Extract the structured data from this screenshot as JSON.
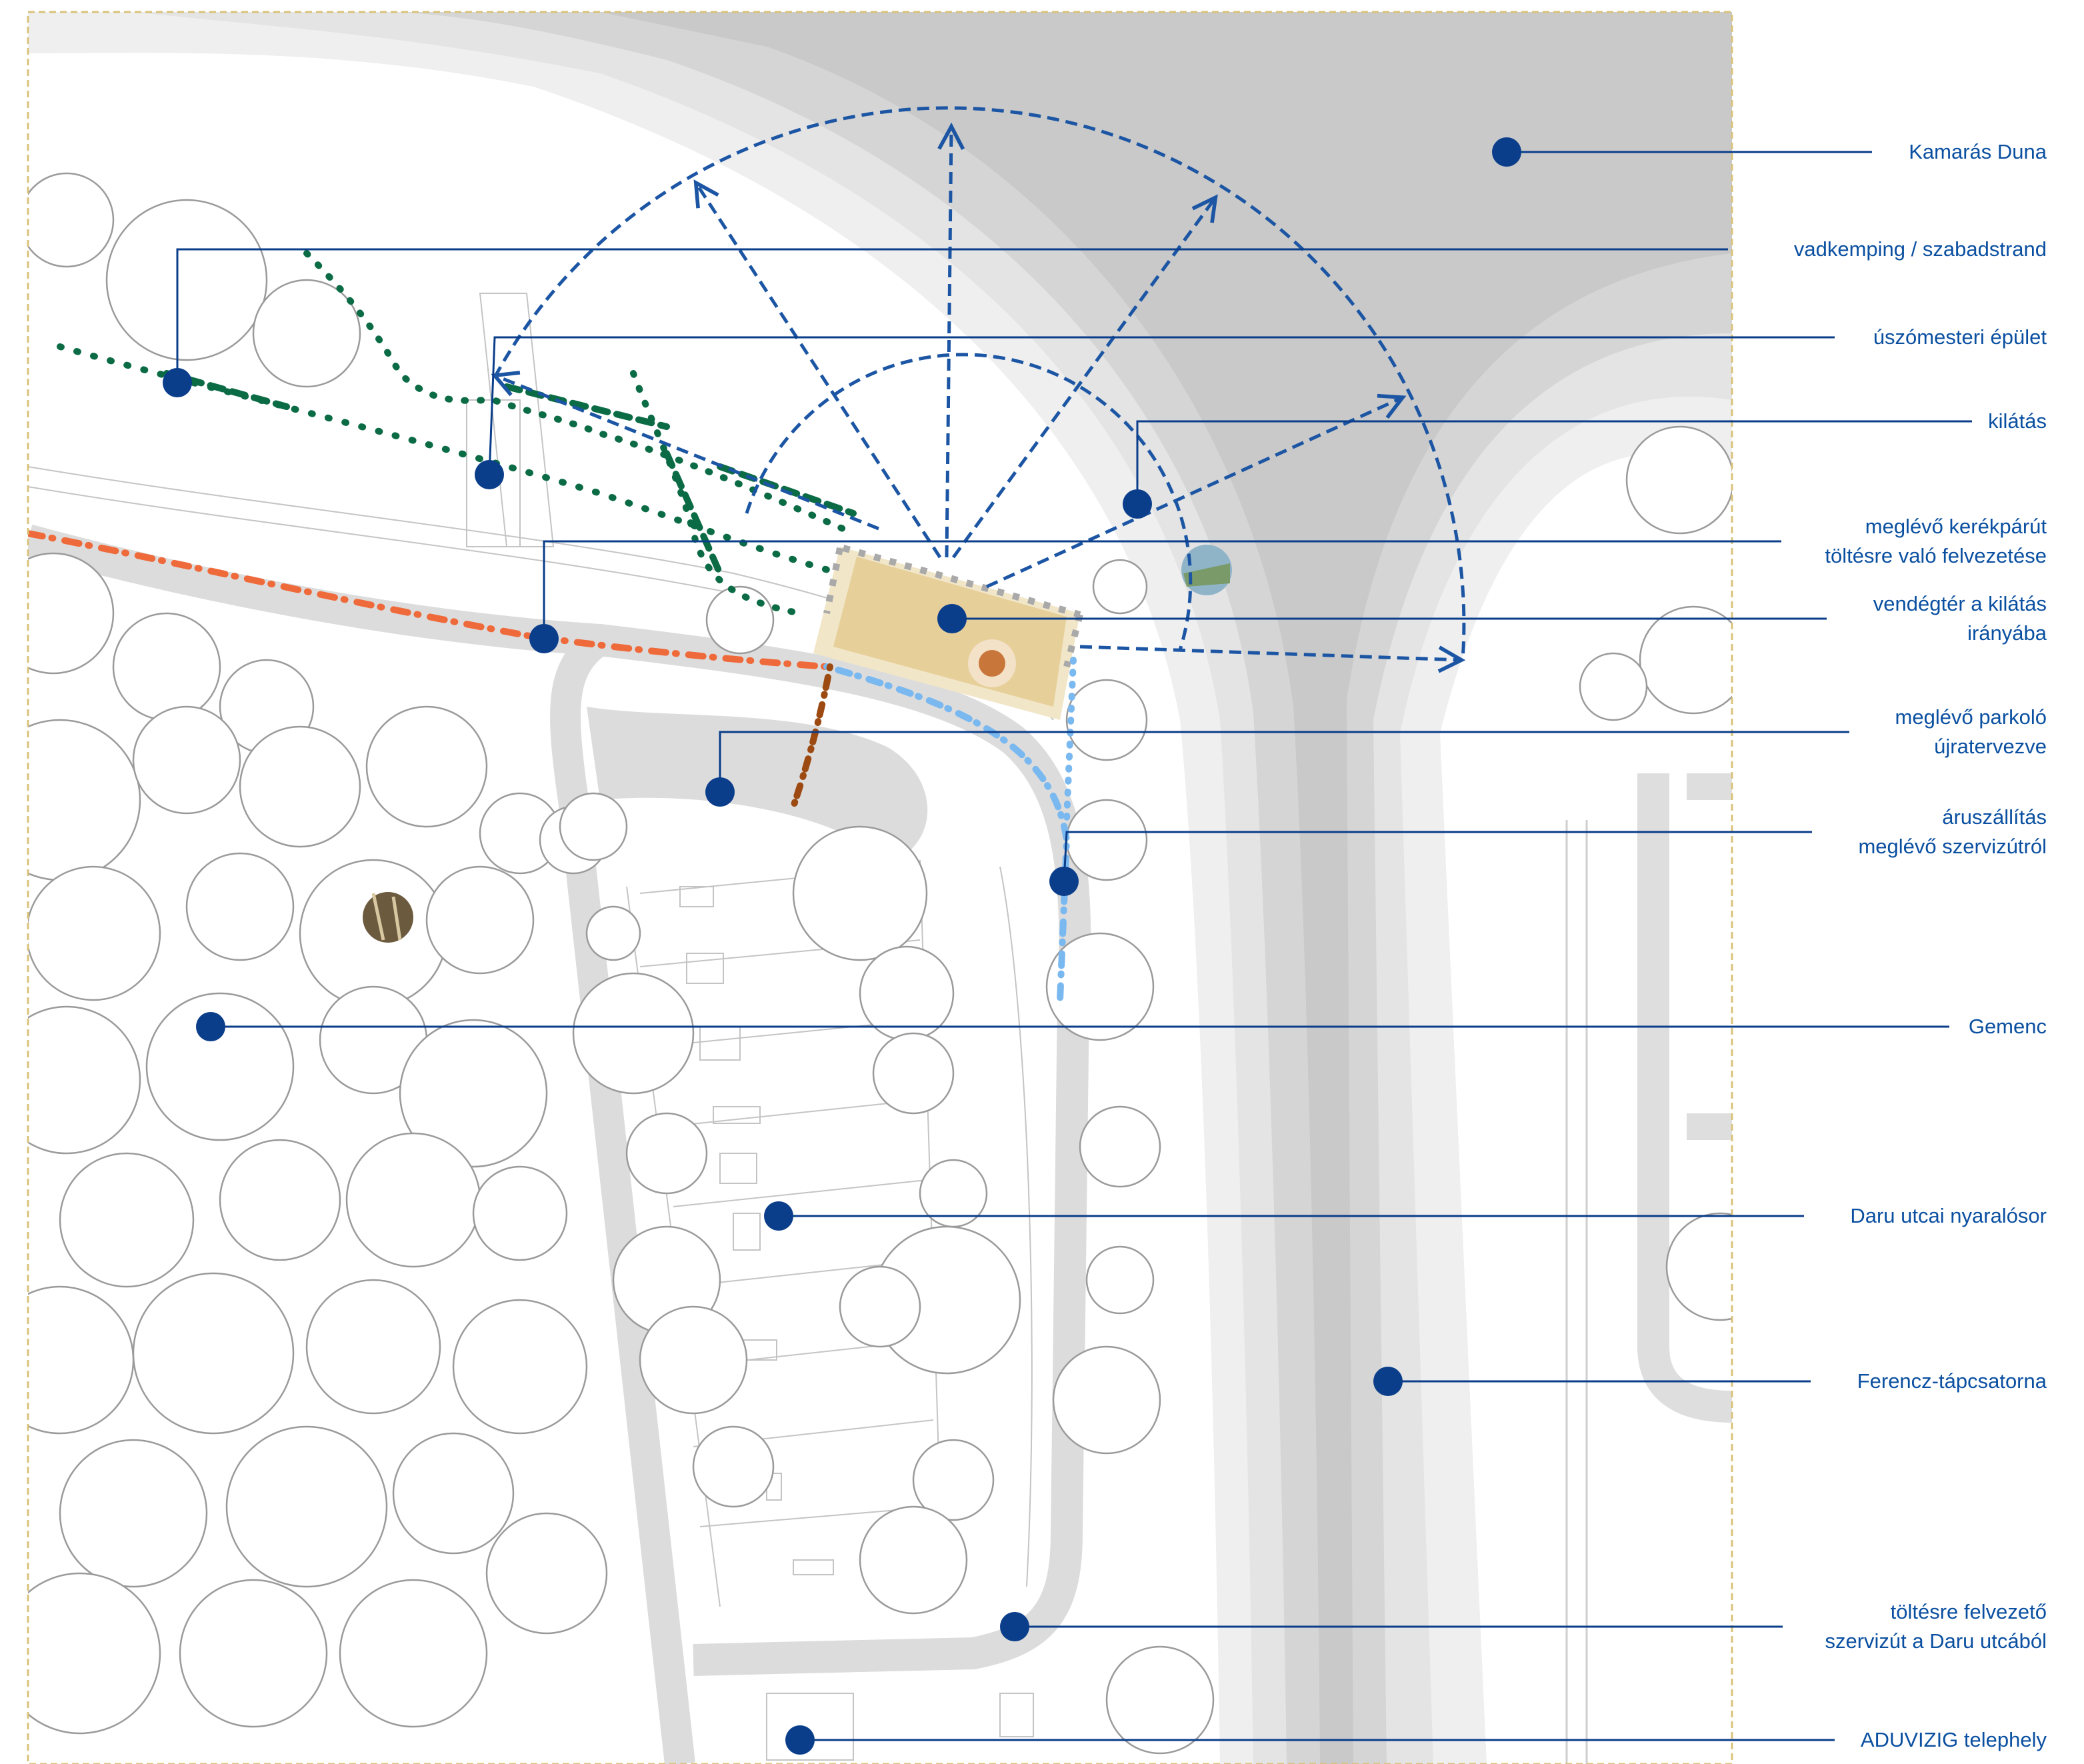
{
  "legend_colors": {
    "callout": "#0a3d8a",
    "callout_text": "#0a4fa0",
    "view_arrows": "#1b55a3",
    "path_green": "#0b6b45",
    "path_orange": "#ef6a3a",
    "path_lightblue": "#7ab8f0",
    "path_brown": "#9c4a12",
    "terrace_fill": "#e6cf99",
    "frame": "#d9c27a"
  },
  "callouts": [
    {
      "id": "kamaras-duna",
      "lines": [
        "Kamarás Duna"
      ]
    },
    {
      "id": "vadkemping",
      "lines": [
        "vadkemping / szabadstrand"
      ]
    },
    {
      "id": "uszomesteri",
      "lines": [
        "úszómesteri épület"
      ]
    },
    {
      "id": "kilatas",
      "lines": [
        "kilátás"
      ]
    },
    {
      "id": "kerekparut",
      "lines": [
        "meglévő kerékpárút",
        "töltésre való felvezetése"
      ]
    },
    {
      "id": "vendegter",
      "lines": [
        "vendégtér a kilátás",
        "irányába"
      ]
    },
    {
      "id": "parkolo",
      "lines": [
        "meglévő parkoló",
        "újratervezve"
      ]
    },
    {
      "id": "aruszallitas",
      "lines": [
        "áruszállítás",
        "meglévő szervizútról"
      ]
    },
    {
      "id": "gemenc",
      "lines": [
        "Gemenc"
      ]
    },
    {
      "id": "daru-nyaralosor",
      "lines": [
        "Daru utcai nyaralósor"
      ]
    },
    {
      "id": "ferencz-tapcsatorna",
      "lines": [
        "Ferencz-tápcsatorna"
      ]
    },
    {
      "id": "szervizut",
      "lines": [
        "töltésre felvezető",
        "szervizút a Daru utcából"
      ]
    },
    {
      "id": "aduvizig",
      "lines": [
        "ADUVIZIG telephely"
      ]
    }
  ]
}
